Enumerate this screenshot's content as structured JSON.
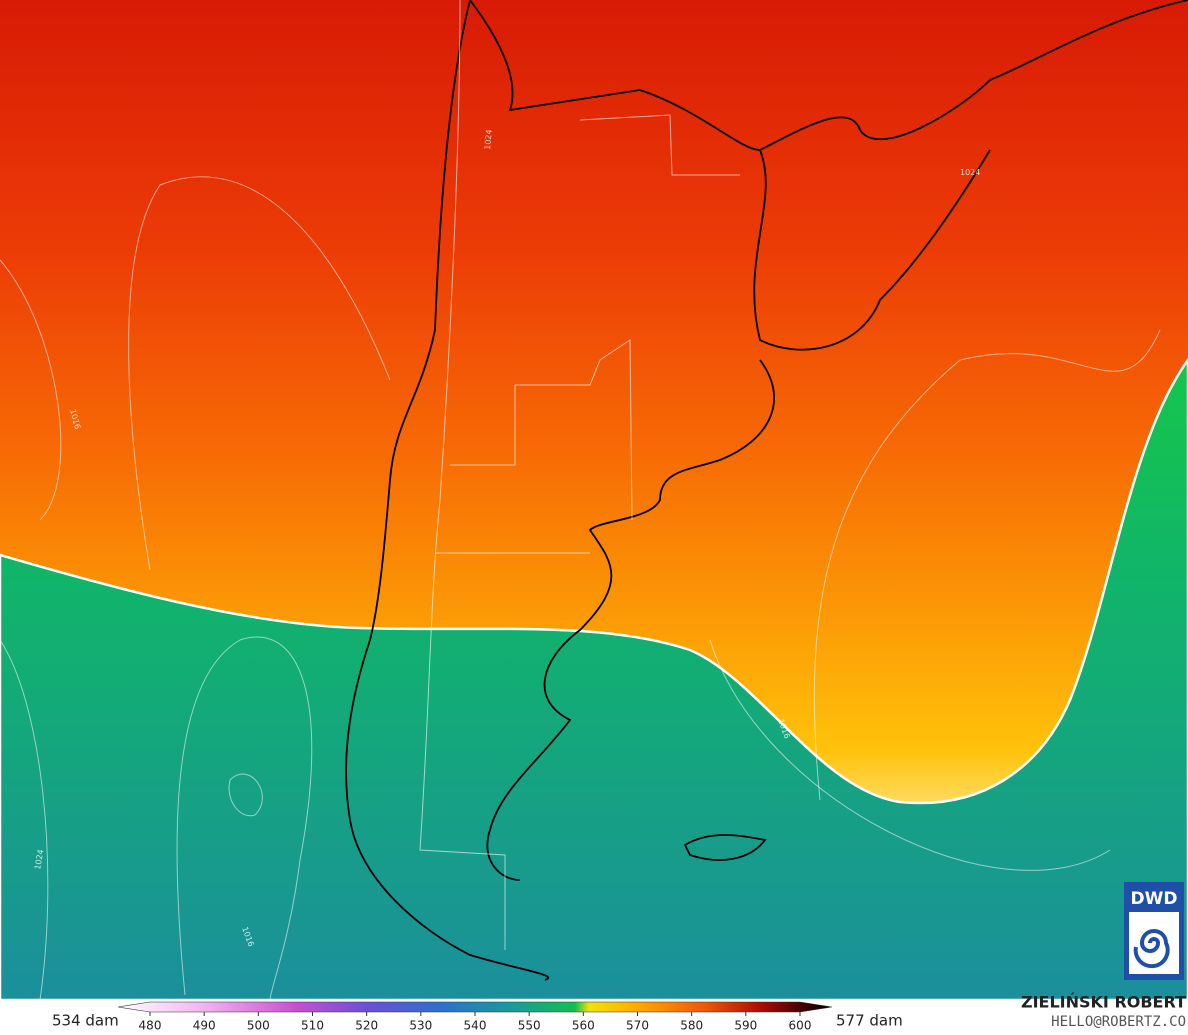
{
  "legend": {
    "min_label": "534 dam",
    "max_label": "577 dam",
    "ticks": [
      480,
      490,
      500,
      510,
      520,
      530,
      540,
      550,
      560,
      570,
      580,
      590,
      600
    ]
  },
  "credit": {
    "name": "ZIELIŃSKI ROBERT",
    "email": "HELLO@ROBERTZ.CO"
  },
  "logo": "DWD",
  "contour_labels": [
    "1016",
    "1024",
    "1024",
    "1016",
    "1024",
    "1016"
  ]
}
